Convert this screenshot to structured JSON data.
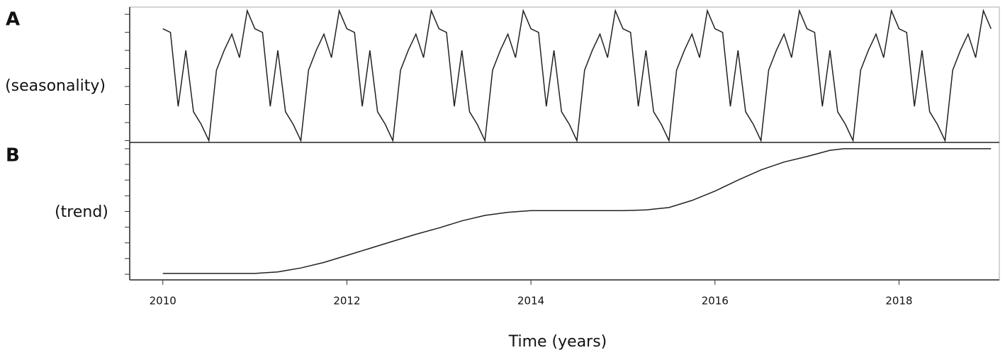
{
  "chart_data": [
    {
      "type": "line",
      "panel_label": "A",
      "ylabel": "(seasonality)",
      "color": "#222222",
      "xlim": [
        2009.64,
        2019.09
      ],
      "ylim": [
        -0.1,
        7.4
      ],
      "yticks": [
        0,
        1,
        2,
        3,
        4,
        5,
        6,
        7
      ],
      "x": [
        2010,
        2010.083,
        2010.167,
        2010.25,
        2010.333,
        2010.417,
        2010.5,
        2010.583,
        2010.667,
        2010.75,
        2010.833,
        2010.917,
        2011,
        2011.083,
        2011.167,
        2011.25,
        2011.333,
        2011.417,
        2011.5,
        2011.583,
        2011.667,
        2011.75,
        2011.833,
        2011.917,
        2012,
        2012.083,
        2012.167,
        2012.25,
        2012.333,
        2012.417,
        2012.5,
        2012.583,
        2012.667,
        2012.75,
        2012.833,
        2012.917,
        2013,
        2013.083,
        2013.167,
        2013.25,
        2013.333,
        2013.417,
        2013.5,
        2013.583,
        2013.667,
        2013.75,
        2013.833,
        2013.917,
        2014,
        2014.083,
        2014.167,
        2014.25,
        2014.333,
        2014.417,
        2014.5,
        2014.583,
        2014.667,
        2014.75,
        2014.833,
        2014.917,
        2015,
        2015.083,
        2015.167,
        2015.25,
        2015.333,
        2015.417,
        2015.5,
        2015.583,
        2015.667,
        2015.75,
        2015.833,
        2015.917,
        2016,
        2016.083,
        2016.167,
        2016.25,
        2016.333,
        2016.417,
        2016.5,
        2016.583,
        2016.667,
        2016.75,
        2016.833,
        2016.917,
        2017,
        2017.083,
        2017.167,
        2017.25,
        2017.333,
        2017.417,
        2017.5,
        2017.583,
        2017.667,
        2017.75,
        2017.833,
        2017.917,
        2018,
        2018.083,
        2018.167,
        2018.25,
        2018.333,
        2018.417,
        2018.5,
        2018.583,
        2018.667,
        2018.75,
        2018.833,
        2018.917,
        2019
      ],
      "values": [
        6.2,
        6.0,
        1.9,
        5.0,
        1.6,
        0.9,
        0.0,
        3.9,
        5.0,
        5.9,
        4.6,
        7.2,
        6.2,
        6.0,
        1.9,
        5.0,
        1.6,
        0.9,
        0.0,
        3.9,
        5.0,
        5.9,
        4.6,
        7.2,
        6.2,
        6.0,
        1.9,
        5.0,
        1.6,
        0.9,
        0.0,
        3.9,
        5.0,
        5.9,
        4.6,
        7.2,
        6.2,
        6.0,
        1.9,
        5.0,
        1.6,
        0.9,
        0.0,
        3.9,
        5.0,
        5.9,
        4.6,
        7.2,
        6.2,
        6.0,
        1.9,
        5.0,
        1.6,
        0.9,
        0.0,
        3.9,
        5.0,
        5.9,
        4.6,
        7.2,
        6.2,
        6.0,
        1.9,
        5.0,
        1.6,
        0.9,
        0.0,
        3.9,
        5.0,
        5.9,
        4.6,
        7.2,
        6.2,
        6.0,
        1.9,
        5.0,
        1.6,
        0.9,
        0.0,
        3.9,
        5.0,
        5.9,
        4.6,
        7.2,
        6.2,
        6.0,
        1.9,
        5.0,
        1.6,
        0.9,
        0.0,
        3.9,
        5.0,
        5.9,
        4.6,
        7.2,
        6.2,
        6.0,
        1.9,
        5.0,
        1.6,
        0.9,
        0.0,
        3.9,
        5.0,
        5.9,
        4.6,
        7.2,
        6.2
      ]
    },
    {
      "type": "line",
      "panel_label": "B",
      "ylabel": "(trend)",
      "color": "#222222",
      "xlabel": "Time (years)",
      "xlim": [
        2009.64,
        2019.09
      ],
      "xticks": [
        2010,
        2012,
        2014,
        2016,
        2018
      ],
      "ylim": [
        -0.36,
        8.4
      ],
      "yticks": [
        0,
        1,
        2,
        3,
        4,
        5,
        6,
        7,
        8
      ],
      "x": [
        2010,
        2010.5,
        2011,
        2011.25,
        2011.5,
        2011.75,
        2012,
        2012.25,
        2012.5,
        2012.75,
        2013,
        2013.25,
        2013.5,
        2013.75,
        2014,
        2015,
        2015.25,
        2015.5,
        2015.75,
        2016,
        2016.25,
        2016.5,
        2016.75,
        2017,
        2017.25,
        2017.4,
        2019
      ],
      "values": [
        0.05,
        0.05,
        0.05,
        0.15,
        0.4,
        0.75,
        1.2,
        1.65,
        2.1,
        2.55,
        2.95,
        3.4,
        3.75,
        3.95,
        4.05,
        4.05,
        4.1,
        4.25,
        4.7,
        5.3,
        6.0,
        6.65,
        7.15,
        7.5,
        7.9,
        8.0,
        8.0
      ]
    }
  ]
}
